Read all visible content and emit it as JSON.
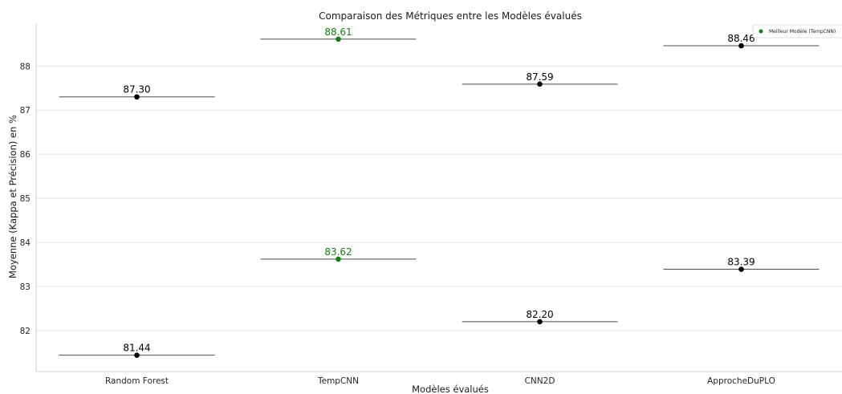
{
  "chart_data": {
    "type": "scatter",
    "title": "Comparaison des Métriques entre les Modèles évalués",
    "xlabel": "Modèles évalués",
    "ylabel": "Moyenne (Kappa et Précision) en %",
    "categories": [
      "Random Forest",
      "TempCNN",
      "CNN2D",
      "ApprocheDuPLO"
    ],
    "yticks": [
      82,
      83,
      84,
      85,
      86,
      87,
      88
    ],
    "ylim": [
      81.07,
      88.97
    ],
    "grid": true,
    "legend": {
      "placement": "top-right",
      "label": "Meilleur Modèle (TempCNN)",
      "color": "#138013"
    },
    "points": [
      {
        "category": "Random Forest",
        "value": 87.3,
        "label": "87.30",
        "best": false
      },
      {
        "category": "Random Forest",
        "value": 81.44,
        "label": "81.44",
        "best": false
      },
      {
        "category": "TempCNN",
        "value": 88.61,
        "label": "88.61",
        "best": true
      },
      {
        "category": "TempCNN",
        "value": 83.62,
        "label": "83.62",
        "best": true
      },
      {
        "category": "CNN2D",
        "value": 87.59,
        "label": "87.59",
        "best": false
      },
      {
        "category": "CNN2D",
        "value": 82.2,
        "label": "82.20",
        "best": false
      },
      {
        "category": "ApprocheDuPLO",
        "value": 88.46,
        "label": "88.46",
        "best": false
      },
      {
        "category": "ApprocheDuPLO",
        "value": 83.39,
        "label": "83.39",
        "best": false
      }
    ],
    "colors": {
      "default": "#000000",
      "best": "#138013",
      "grid": "#e3e3e3",
      "axis": "#cfcfcf",
      "hline": "#4d4d4d"
    }
  }
}
